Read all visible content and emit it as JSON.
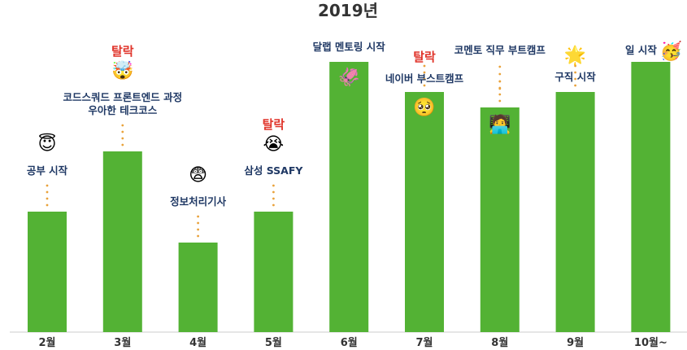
{
  "chart_data": {
    "type": "bar",
    "title": "2019년",
    "categories": [
      "2월",
      "3월",
      "4월",
      "5월",
      "6월",
      "7월",
      "8월",
      "9월",
      "10월~"
    ],
    "values": [
      148,
      222,
      110,
      148,
      332,
      295,
      276,
      295,
      332
    ],
    "ylim": [
      0,
      340
    ],
    "grid": false,
    "bar_color": "#53b234",
    "annotations": [
      {
        "category": "2월",
        "lines": [
          "공부 시작"
        ],
        "emoji": "halo-face"
      },
      {
        "category": "3월",
        "drop_label": "탈락",
        "lines": [
          "코드스쿼드 프론트엔드 과정",
          "우아한 테크코스"
        ],
        "emoji": "exploding-head"
      },
      {
        "category": "4월",
        "lines": [
          "정보처리기사"
        ],
        "emoji": "anxious-face"
      },
      {
        "category": "5월",
        "drop_label": "탈락",
        "lines": [
          "삼성 SSAFY"
        ],
        "emoji": "crying-face"
      },
      {
        "category": "6월",
        "lines": [
          "달랩 멘토링 시작"
        ],
        "emoji": "squid"
      },
      {
        "category": "7월",
        "drop_label": "탈락",
        "lines": [
          "네이버 부스트캠프"
        ],
        "emoji": "pleading-face"
      },
      {
        "category": "8월",
        "lines": [
          "코멘토 직무 부트캠프"
        ],
        "emoji": "technologist"
      },
      {
        "category": "9월",
        "lines": [
          "구직 시작"
        ],
        "emoji": "glowing-star"
      },
      {
        "category": "10월~",
        "lines": [
          "일 시작"
        ],
        "emoji": "party-face"
      }
    ],
    "colors": {
      "accent": "#e0342a",
      "note_text": "#1f3864",
      "dots": "#e9a23b",
      "axis": "#cccccc"
    }
  }
}
